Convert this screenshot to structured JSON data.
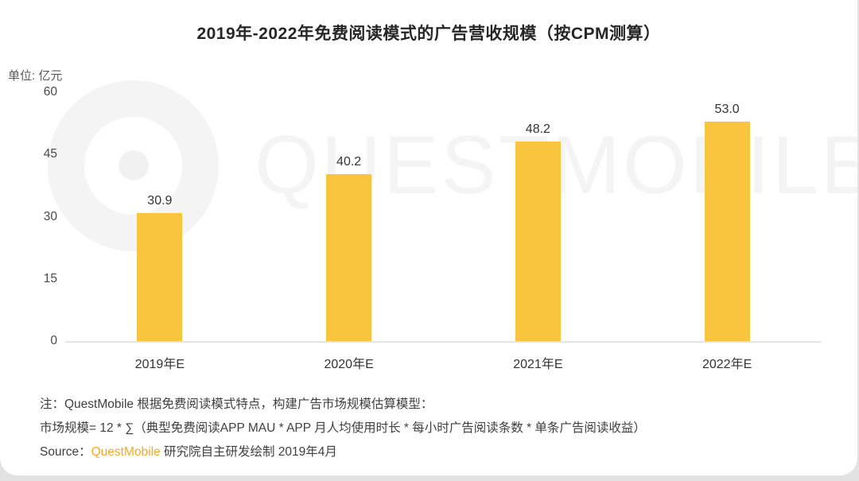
{
  "chart_data": {
    "type": "bar",
    "title": "2019年-2022年免费阅读模式的广告营收规模（按CPM测算）",
    "unit_label": "单位: 亿元",
    "categories": [
      "2019年E",
      "2020年E",
      "2021年E",
      "2022年E"
    ],
    "values": [
      30.9,
      40.2,
      48.2,
      53.0
    ],
    "value_labels": [
      "30.9",
      "40.2",
      "48.2",
      "53.0"
    ],
    "ylim": [
      0,
      60
    ],
    "yticks": [
      60,
      45,
      30,
      15,
      0
    ],
    "bar_color": "#F9C53F",
    "grid": false,
    "legend": "none",
    "xlabel": "",
    "ylabel": "亿元"
  },
  "watermark": {
    "text": "QUESTMOBILE"
  },
  "notes": {
    "line1": "注：QuestMobile 根据免费阅读模式特点，构建广告市场规模估算模型：",
    "line2": "市场规模= 12 * ∑（典型免费阅读APP MAU * APP 月人均使用时长 * 每小时广告阅读条数 * 单条广告阅读收益）",
    "source_prefix": "Source：",
    "source_brand": "QuestMobile",
    "source_suffix": " 研究院自主研发绘制 2019年4月",
    "brand_color": "#F7A823"
  }
}
